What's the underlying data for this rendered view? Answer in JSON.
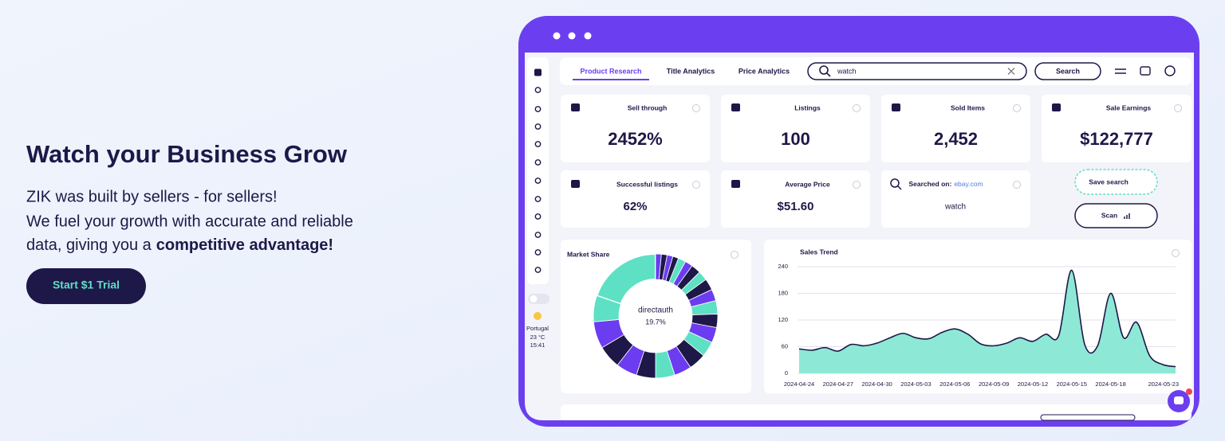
{
  "hero": {
    "title": "Watch your Business Grow",
    "line_1": "ZIK was built by sellers - for sellers!",
    "line_2": "We fuel your growth with accurate and reliable",
    "line_3": "data, giving you a",
    "line_3_bold": "competitive advantage!",
    "button": "Start $1 Trial"
  },
  "app": {
    "tabs": [
      "Product Research",
      "Title Analytics",
      "Price Analytics"
    ],
    "search_query": "watch",
    "search_button": "Search",
    "weather": {
      "location": "Portugal",
      "temperature": "23 °C",
      "time": "15:41"
    },
    "cards": [
      {
        "label": "Sell through",
        "value": "2452%"
      },
      {
        "label": "Listings",
        "value": "100"
      },
      {
        "label": "Sold Items",
        "value": "2,452"
      },
      {
        "label": "Sale Earnings",
        "value": "$122,777"
      },
      {
        "label": "Successful listings",
        "value": "62%"
      },
      {
        "label": "Average Price",
        "value": "$51.60"
      }
    ],
    "searched_on": {
      "label": "Searched on:",
      "site": "ebay.com",
      "value": "watch"
    },
    "actions": [
      "Save search",
      "Scan"
    ]
  },
  "chart_data": [
    {
      "type": "pie",
      "title": "Market Share",
      "categories": [
        "directauth",
        null,
        null,
        null,
        null,
        null,
        null,
        null,
        null,
        null,
        null,
        null,
        null,
        null,
        null,
        null,
        null,
        null,
        null,
        null,
        null,
        null,
        null
      ],
      "values": [
        19.7,
        1.5,
        1.5,
        1.5,
        1.5,
        2,
        2,
        2.5,
        2.5,
        3,
        3,
        3.5,
        3.5,
        4,
        4,
        4.5,
        4.5,
        5,
        5,
        5.5,
        6,
        7,
        6.8
      ],
      "value_labels": [
        "19.7%",
        null,
        null,
        null,
        null,
        null,
        null,
        null,
        null,
        null,
        null,
        null,
        null,
        null,
        null,
        null,
        null,
        null,
        null,
        null,
        null,
        null,
        null
      ],
      "colors": [
        "#5ee0c4",
        "#6c3cf0",
        "#1e1848",
        "#6c3cf0",
        "#1e1848",
        "#5ee0c4",
        "#6c3cf0",
        "#1e1848",
        "#5ee0c4",
        "#1e1848",
        "#6c3cf0",
        "#5ee0c4",
        "#1e1848",
        "#6c3cf0",
        "#5ee0c4",
        "#1e1848",
        "#6c3cf0",
        "#5ee0c4",
        "#1e1848",
        "#6c3cf0",
        "#1e1848",
        "#6c3cf0",
        "#5ee0c4"
      ]
    },
    {
      "type": "area",
      "title": "Sales Trend",
      "categories": [
        "2024-04-24",
        null,
        null,
        "2024-04-27",
        null,
        null,
        "2024-04-30",
        null,
        null,
        "2024-05-03",
        null,
        null,
        "2024-05-06",
        null,
        null,
        "2024-05-09",
        null,
        null,
        "2024-05-12",
        null,
        null,
        "2024-05-15",
        null,
        null,
        "2024-05-18",
        null,
        null,
        null,
        null,
        "2024-05-23"
      ],
      "values": [
        55,
        52,
        58,
        50,
        65,
        62,
        68,
        80,
        90,
        80,
        78,
        92,
        100,
        88,
        66,
        62,
        68,
        80,
        72,
        88,
        85,
        232,
        65,
        62,
        180,
        80,
        115,
        40,
        20,
        15
      ],
      "ylim": [
        0,
        240
      ],
      "yticks": [
        0,
        60,
        120,
        180,
        240
      ],
      "grid": true,
      "color": "#1e1848",
      "fill": "#8ee8d6"
    }
  ]
}
